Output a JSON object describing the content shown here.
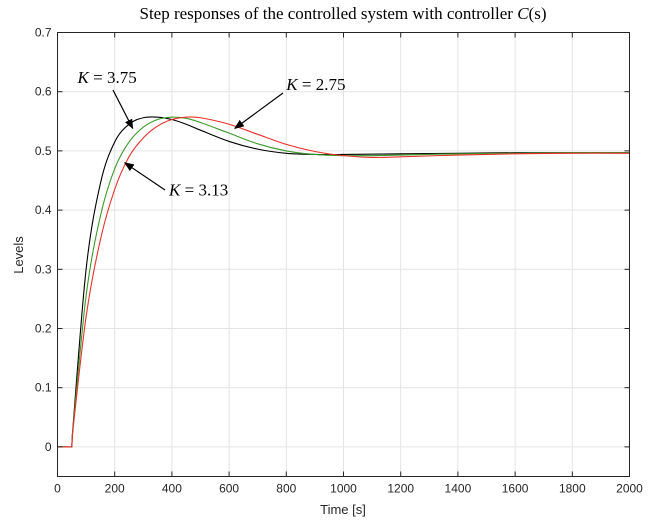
{
  "chart_data": {
    "type": "line",
    "title": {
      "prefix": "Step responses of the controlled system with controller ",
      "math": "C",
      "suffix": "(s)"
    },
    "xlabel": "Time [s]",
    "ylabel": "Levels",
    "xlim": [
      0,
      2000
    ],
    "ylim": [
      -0.05,
      0.7
    ],
    "xticks": [
      0,
      200,
      400,
      600,
      800,
      1000,
      1200,
      1400,
      1600,
      1800,
      2000
    ],
    "xtick_labels": [
      "0",
      "200",
      "400",
      "600",
      "800",
      "1000",
      "1200",
      "1400",
      "1600",
      "1800",
      "2000"
    ],
    "yticks": [
      0,
      0.1,
      0.2,
      0.3,
      0.4,
      0.5,
      0.6,
      0.7
    ],
    "ytick_labels": [
      "0",
      "0.1",
      "0.2",
      "0.3",
      "0.4",
      "0.5",
      "0.6",
      "0.7"
    ],
    "grid": true,
    "series": [
      {
        "color": "#000000",
        "x": [
          0,
          50,
          52,
          100,
          150,
          200,
          250,
          300,
          350,
          400,
          450,
          500,
          600,
          700,
          800,
          900,
          1000,
          1200,
          1400,
          1600,
          1800,
          2000
        ],
        "y": [
          0,
          0,
          0.02,
          0.3,
          0.445,
          0.515,
          0.545,
          0.556,
          0.557,
          0.553,
          0.545,
          0.535,
          0.516,
          0.503,
          0.496,
          0.494,
          0.494,
          0.495,
          0.496,
          0.497,
          0.497,
          0.497
        ]
      },
      {
        "color": "#3a9a2a",
        "x": [
          0,
          50,
          52,
          100,
          150,
          200,
          250,
          300,
          350,
          400,
          450,
          500,
          600,
          700,
          800,
          900,
          1000,
          1100,
          1200,
          1400,
          1600,
          1800,
          2000
        ],
        "y": [
          0,
          0,
          0.02,
          0.255,
          0.39,
          0.47,
          0.515,
          0.54,
          0.553,
          0.557,
          0.555,
          0.548,
          0.53,
          0.512,
          0.5,
          0.494,
          0.492,
          0.492,
          0.493,
          0.495,
          0.496,
          0.497,
          0.497
        ]
      },
      {
        "color": "#e8302a",
        "x": [
          0,
          50,
          52,
          100,
          150,
          200,
          250,
          300,
          350,
          400,
          450,
          500,
          600,
          700,
          800,
          900,
          1000,
          1100,
          1200,
          1400,
          1600,
          1800,
          2000
        ],
        "y": [
          0,
          0,
          0.02,
          0.22,
          0.35,
          0.435,
          0.49,
          0.522,
          0.542,
          0.553,
          0.557,
          0.556,
          0.545,
          0.528,
          0.511,
          0.499,
          0.492,
          0.489,
          0.49,
          0.493,
          0.495,
          0.496,
          0.496
        ]
      }
    ],
    "annotations": [
      {
        "math": "K",
        "text": " = 3.75",
        "tx": 70,
        "ty": 0.615,
        "ax": 263,
        "ay": 0.538
      },
      {
        "math": "K",
        "text": " = 2.75",
        "tx": 800,
        "ty": 0.603,
        "ax": 620,
        "ay": 0.538
      },
      {
        "math": "K",
        "text": " = 3.13",
        "tx": 390,
        "ty": 0.425,
        "ax": 235,
        "ay": 0.48
      }
    ]
  }
}
